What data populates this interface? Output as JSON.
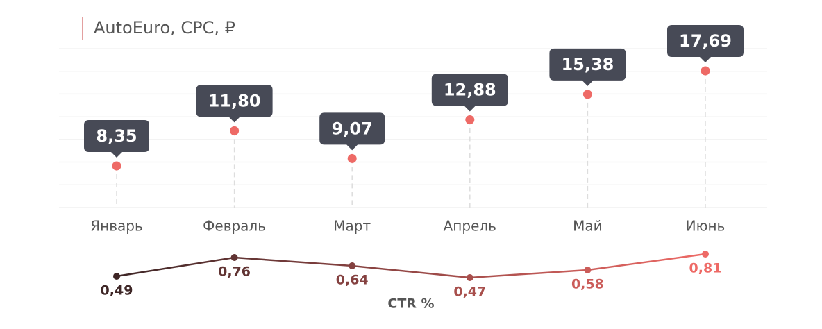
{
  "chart_data": [
    {
      "type": "dot",
      "title": "AutoEuro, CPC, ₽",
      "categories": [
        "Январь",
        "Февраль",
        "Март",
        "Апрель",
        "Май",
        "Июнь"
      ],
      "values": [
        8.35,
        11.8,
        9.07,
        12.88,
        15.38,
        17.69
      ],
      "value_labels": [
        "8,35",
        "11,80",
        "9,07",
        "12,88",
        "15,38",
        "17,69"
      ],
      "color": "#ee6a66",
      "label_box_color": "#474a56",
      "ylim": [
        4.26,
        19.87
      ]
    },
    {
      "type": "line",
      "title": "CTR %",
      "values": [
        0.49,
        0.76,
        0.64,
        0.47,
        0.58,
        0.81
      ],
      "value_labels": [
        "0,49",
        "0,76",
        "0,64",
        "0,47",
        "0,58",
        "0,81"
      ],
      "color_from": "#3e2626",
      "color_to": "#ee6a66",
      "ylim": [
        0.4,
        0.9
      ]
    }
  ]
}
